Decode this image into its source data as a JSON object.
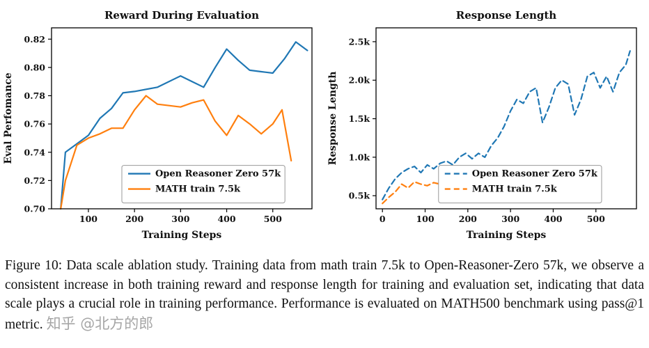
{
  "page": {
    "background": "#ffffff"
  },
  "caption": {
    "text": "Figure 10: Data scale ablation study. Training data from math train 7.5k to Open-Reasoner-Zero 57k, we observe a consistent increase in both training reward and response length for training and evaluation set, indicating that data scale plays a crucial role in training performance. Performance is evaluated on MATH500 benchmark using pass@1 metric."
  },
  "watermark": {
    "text": "知乎 @北方的郎",
    "color": "#a6a6a6"
  },
  "chart_data": [
    {
      "type": "line",
      "title": "Reward During Evaluation",
      "xlabel": "Training Steps",
      "ylabel": "Eval Perfomance",
      "xlim": [
        20,
        585
      ],
      "ylim": [
        0.7,
        0.828
      ],
      "xticks": [
        100,
        200,
        300,
        400,
        500
      ],
      "xtick_labels": [
        "100",
        "200",
        "300",
        "400",
        "500"
      ],
      "yticks": [
        0.7,
        0.72,
        0.74,
        0.76,
        0.78,
        0.8,
        0.82
      ],
      "ytick_labels": [
        "0.70",
        "0.72",
        "0.74",
        "0.76",
        "0.78",
        "0.80",
        "0.82"
      ],
      "grid": false,
      "legend": {
        "x": 0.27,
        "y": 0.76
      },
      "series": [
        {
          "name": "Open Reasoner Zero 57k",
          "color": "#1f77b4",
          "dash": false,
          "x": [
            40,
            50,
            75,
            100,
            125,
            150,
            175,
            200,
            250,
            300,
            325,
            350,
            375,
            400,
            425,
            450,
            475,
            500,
            525,
            550,
            575
          ],
          "y": [
            0.7,
            0.74,
            0.746,
            0.752,
            0.764,
            0.771,
            0.782,
            0.783,
            0.786,
            0.794,
            0.79,
            0.786,
            0.8,
            0.813,
            0.805,
            0.798,
            0.797,
            0.796,
            0.806,
            0.818,
            0.812
          ]
        },
        {
          "name": "MATH train 7.5k",
          "color": "#ff7f0e",
          "dash": false,
          "x": [
            40,
            50,
            75,
            100,
            125,
            150,
            175,
            200,
            225,
            250,
            275,
            300,
            325,
            350,
            375,
            400,
            425,
            450,
            475,
            500,
            520,
            540
          ],
          "y": [
            0.7,
            0.72,
            0.745,
            0.75,
            0.753,
            0.757,
            0.757,
            0.77,
            0.78,
            0.774,
            0.773,
            0.772,
            0.775,
            0.777,
            0.762,
            0.752,
            0.766,
            0.76,
            0.753,
            0.76,
            0.77,
            0.734
          ]
        }
      ]
    },
    {
      "type": "line",
      "title": "Response Length",
      "xlabel": "Training Steps",
      "ylabel": "Response Length",
      "xlim": [
        -15,
        595
      ],
      "ylim": [
        330,
        2680
      ],
      "xticks": [
        0,
        100,
        200,
        300,
        400,
        500
      ],
      "xtick_labels": [
        "0",
        "100",
        "200",
        "300",
        "400",
        "500"
      ],
      "yticks": [
        500,
        1000,
        1500,
        2000,
        2500
      ],
      "ytick_labels": [
        "0.5k",
        "1.0k",
        "1.5k",
        "2.0k",
        "2.5k"
      ],
      "grid": false,
      "legend": {
        "x": 0.24,
        "y": 0.76
      },
      "series": [
        {
          "name": "Open Reasoner Zero 57k",
          "color": "#1f77b4",
          "dash": true,
          "x": [
            0,
            15,
            30,
            45,
            60,
            75,
            90,
            105,
            120,
            135,
            150,
            165,
            180,
            195,
            210,
            225,
            240,
            255,
            270,
            285,
            300,
            315,
            330,
            345,
            360,
            375,
            390,
            405,
            420,
            435,
            450,
            465,
            480,
            495,
            510,
            525,
            540,
            555,
            570,
            580
          ],
          "y": [
            450,
            600,
            720,
            800,
            850,
            880,
            800,
            900,
            850,
            920,
            950,
            900,
            1000,
            1050,
            980,
            1050,
            1000,
            1150,
            1250,
            1400,
            1600,
            1750,
            1700,
            1850,
            1900,
            1450,
            1650,
            1900,
            2000,
            1950,
            1550,
            1750,
            2050,
            2100,
            1900,
            2050,
            1850,
            2100,
            2200,
            2380
          ]
        },
        {
          "name": "MATH train 7.5k",
          "color": "#ff7f0e",
          "dash": true,
          "x": [
            0,
            15,
            30,
            45,
            60,
            75,
            90,
            105,
            120,
            135,
            150,
            165,
            180,
            195,
            210,
            225,
            240,
            255
          ],
          "y": [
            400,
            480,
            550,
            650,
            600,
            680,
            650,
            630,
            670,
            650,
            660,
            640,
            670,
            650,
            660,
            680,
            650,
            680
          ]
        }
      ]
    }
  ]
}
